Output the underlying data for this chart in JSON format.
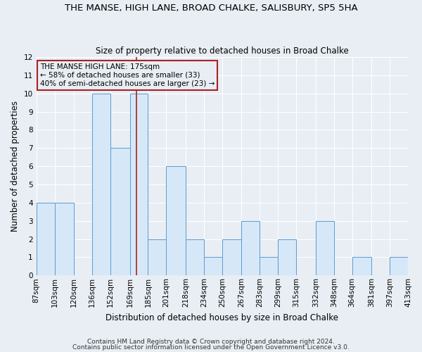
{
  "title": "THE MANSE, HIGH LANE, BROAD CHALKE, SALISBURY, SP5 5HA",
  "subtitle": "Size of property relative to detached houses in Broad Chalke",
  "xlabel": "Distribution of detached houses by size in Broad Chalke",
  "ylabel": "Number of detached properties",
  "bin_edges": [
    87,
    103,
    120,
    136,
    152,
    169,
    185,
    201,
    218,
    234,
    250,
    267,
    283,
    299,
    315,
    332,
    348,
    364,
    381,
    397,
    413
  ],
  "counts": [
    4,
    4,
    0,
    10,
    7,
    10,
    2,
    6,
    2,
    1,
    2,
    3,
    1,
    2,
    0,
    3,
    0,
    1,
    0,
    1
  ],
  "bar_facecolor": "#d6e8f7",
  "bar_edgecolor": "#5b9bd5",
  "reference_line_x": 175,
  "reference_line_color": "#aa2222",
  "ylim": [
    0,
    12
  ],
  "yticks": [
    0,
    1,
    2,
    3,
    4,
    5,
    6,
    7,
    8,
    9,
    10,
    11,
    12
  ],
  "annotation_title": "THE MANSE HIGH LANE: 175sqm",
  "annotation_line1": "← 58% of detached houses are smaller (33)",
  "annotation_line2": "40% of semi-detached houses are larger (23) →",
  "annotation_box_edgecolor": "#aa2222",
  "background_color": "#e8eef4",
  "plot_bg_color": "#e8eef4",
  "grid_color": "#ffffff",
  "footnote1": "Contains HM Land Registry data © Crown copyright and database right 2024.",
  "footnote2": "Contains public sector information licensed under the Open Government Licence v3.0.",
  "title_fontsize": 9.5,
  "subtitle_fontsize": 8.5,
  "ylabel_fontsize": 8.5,
  "xlabel_fontsize": 8.5,
  "tick_fontsize": 7.5,
  "annotation_fontsize": 7.5,
  "footnote_fontsize": 6.5
}
